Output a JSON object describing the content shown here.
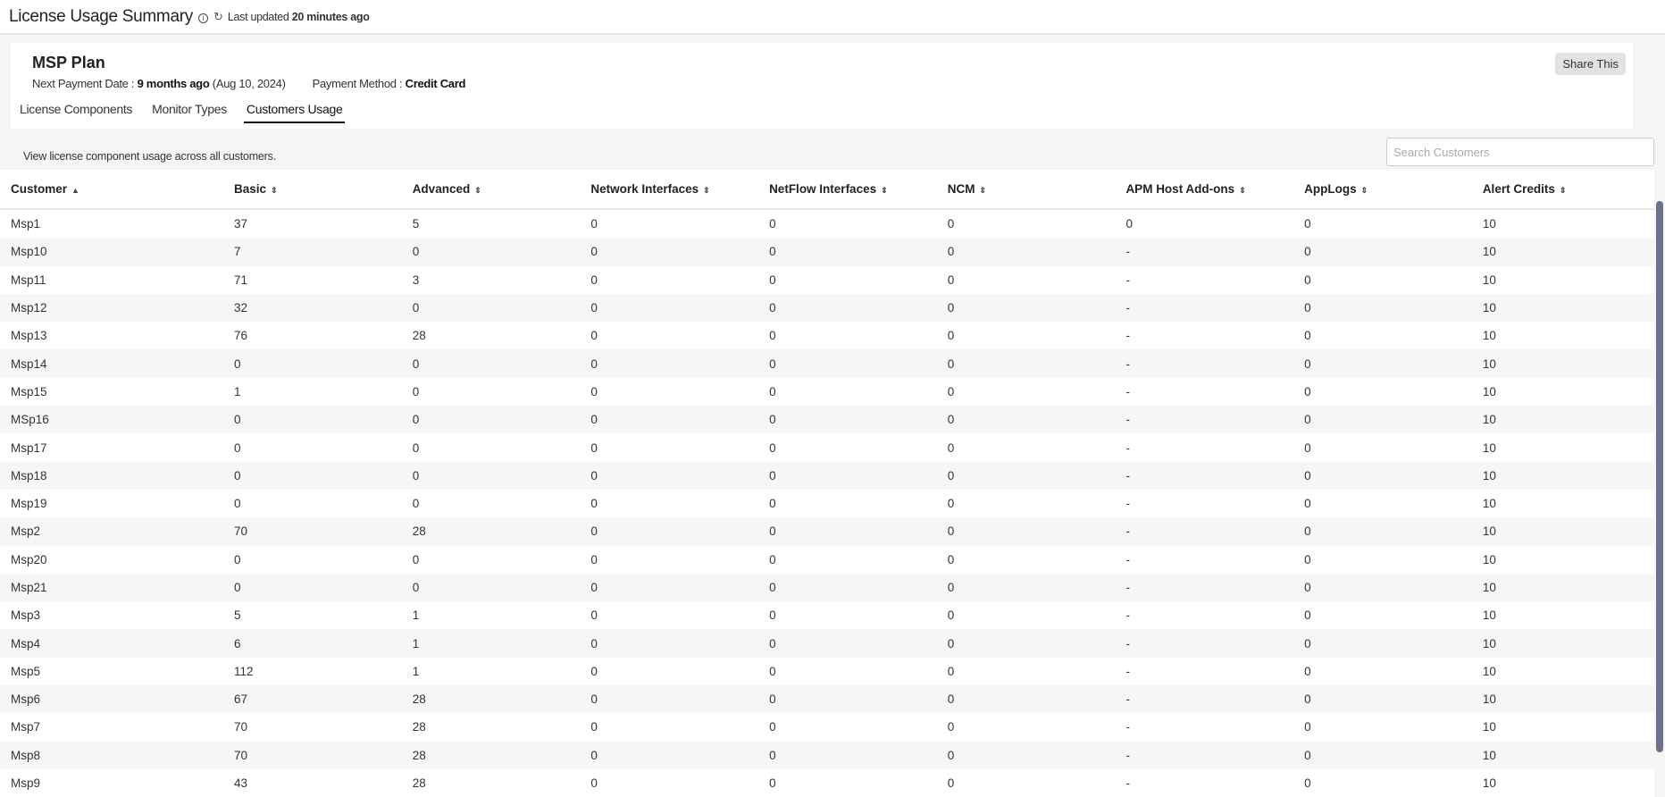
{
  "header": {
    "title": "License Usage Summary",
    "info_icon": "info-icon",
    "refresh_icon": "refresh-icon",
    "last_updated_label": "Last updated",
    "last_updated_value": "20 minutes ago"
  },
  "plan": {
    "name": "MSP Plan",
    "next_payment_label": "Next Payment Date :",
    "next_payment_value": "9 months ago",
    "next_payment_date": "(Aug 10, 2024)",
    "payment_method_label": "Payment Method :",
    "payment_method_value": "Credit Card",
    "share_label": "Share This"
  },
  "tabs": [
    {
      "label": "License Components"
    },
    {
      "label": "Monitor Types"
    },
    {
      "label": "Customers Usage",
      "active": true
    }
  ],
  "description": "View license component usage across all customers.",
  "search": {
    "placeholder": "Search Customers",
    "value": ""
  },
  "table": {
    "columns": [
      "Customer",
      "Basic",
      "Advanced",
      "Network Interfaces",
      "NetFlow Interfaces",
      "NCM",
      "APM Host Add-ons",
      "AppLogs",
      "Alert Credits"
    ],
    "sort": {
      "column": "Customer",
      "direction": "asc"
    },
    "rows": [
      [
        "Msp1",
        "37",
        "5",
        "0",
        "0",
        "0",
        "0",
        "0",
        "10"
      ],
      [
        "Msp10",
        "7",
        "0",
        "0",
        "0",
        "0",
        "-",
        "0",
        "10"
      ],
      [
        "Msp11",
        "71",
        "3",
        "0",
        "0",
        "0",
        "-",
        "0",
        "10"
      ],
      [
        "Msp12",
        "32",
        "0",
        "0",
        "0",
        "0",
        "-",
        "0",
        "10"
      ],
      [
        "Msp13",
        "76",
        "28",
        "0",
        "0",
        "0",
        "-",
        "0",
        "10"
      ],
      [
        "Msp14",
        "0",
        "0",
        "0",
        "0",
        "0",
        "-",
        "0",
        "10"
      ],
      [
        "Msp15",
        "1",
        "0",
        "0",
        "0",
        "0",
        "-",
        "0",
        "10"
      ],
      [
        "MSp16",
        "0",
        "0",
        "0",
        "0",
        "0",
        "-",
        "0",
        "10"
      ],
      [
        "Msp17",
        "0",
        "0",
        "0",
        "0",
        "0",
        "-",
        "0",
        "10"
      ],
      [
        "Msp18",
        "0",
        "0",
        "0",
        "0",
        "0",
        "-",
        "0",
        "10"
      ],
      [
        "Msp19",
        "0",
        "0",
        "0",
        "0",
        "0",
        "-",
        "0",
        "10"
      ],
      [
        "Msp2",
        "70",
        "28",
        "0",
        "0",
        "0",
        "-",
        "0",
        "10"
      ],
      [
        "Msp20",
        "0",
        "0",
        "0",
        "0",
        "0",
        "-",
        "0",
        "10"
      ],
      [
        "Msp21",
        "0",
        "0",
        "0",
        "0",
        "0",
        "-",
        "0",
        "10"
      ],
      [
        "Msp3",
        "5",
        "1",
        "0",
        "0",
        "0",
        "-",
        "0",
        "10"
      ],
      [
        "Msp4",
        "6",
        "1",
        "0",
        "0",
        "0",
        "-",
        "0",
        "10"
      ],
      [
        "Msp5",
        "112",
        "1",
        "0",
        "0",
        "0",
        "-",
        "0",
        "10"
      ],
      [
        "Msp6",
        "67",
        "28",
        "0",
        "0",
        "0",
        "-",
        "0",
        "10"
      ],
      [
        "Msp7",
        "70",
        "28",
        "0",
        "0",
        "0",
        "-",
        "0",
        "10"
      ],
      [
        "Msp8",
        "70",
        "28",
        "0",
        "0",
        "0",
        "-",
        "0",
        "10"
      ],
      [
        "Msp9",
        "43",
        "28",
        "0",
        "0",
        "0",
        "-",
        "0",
        "10"
      ]
    ]
  }
}
